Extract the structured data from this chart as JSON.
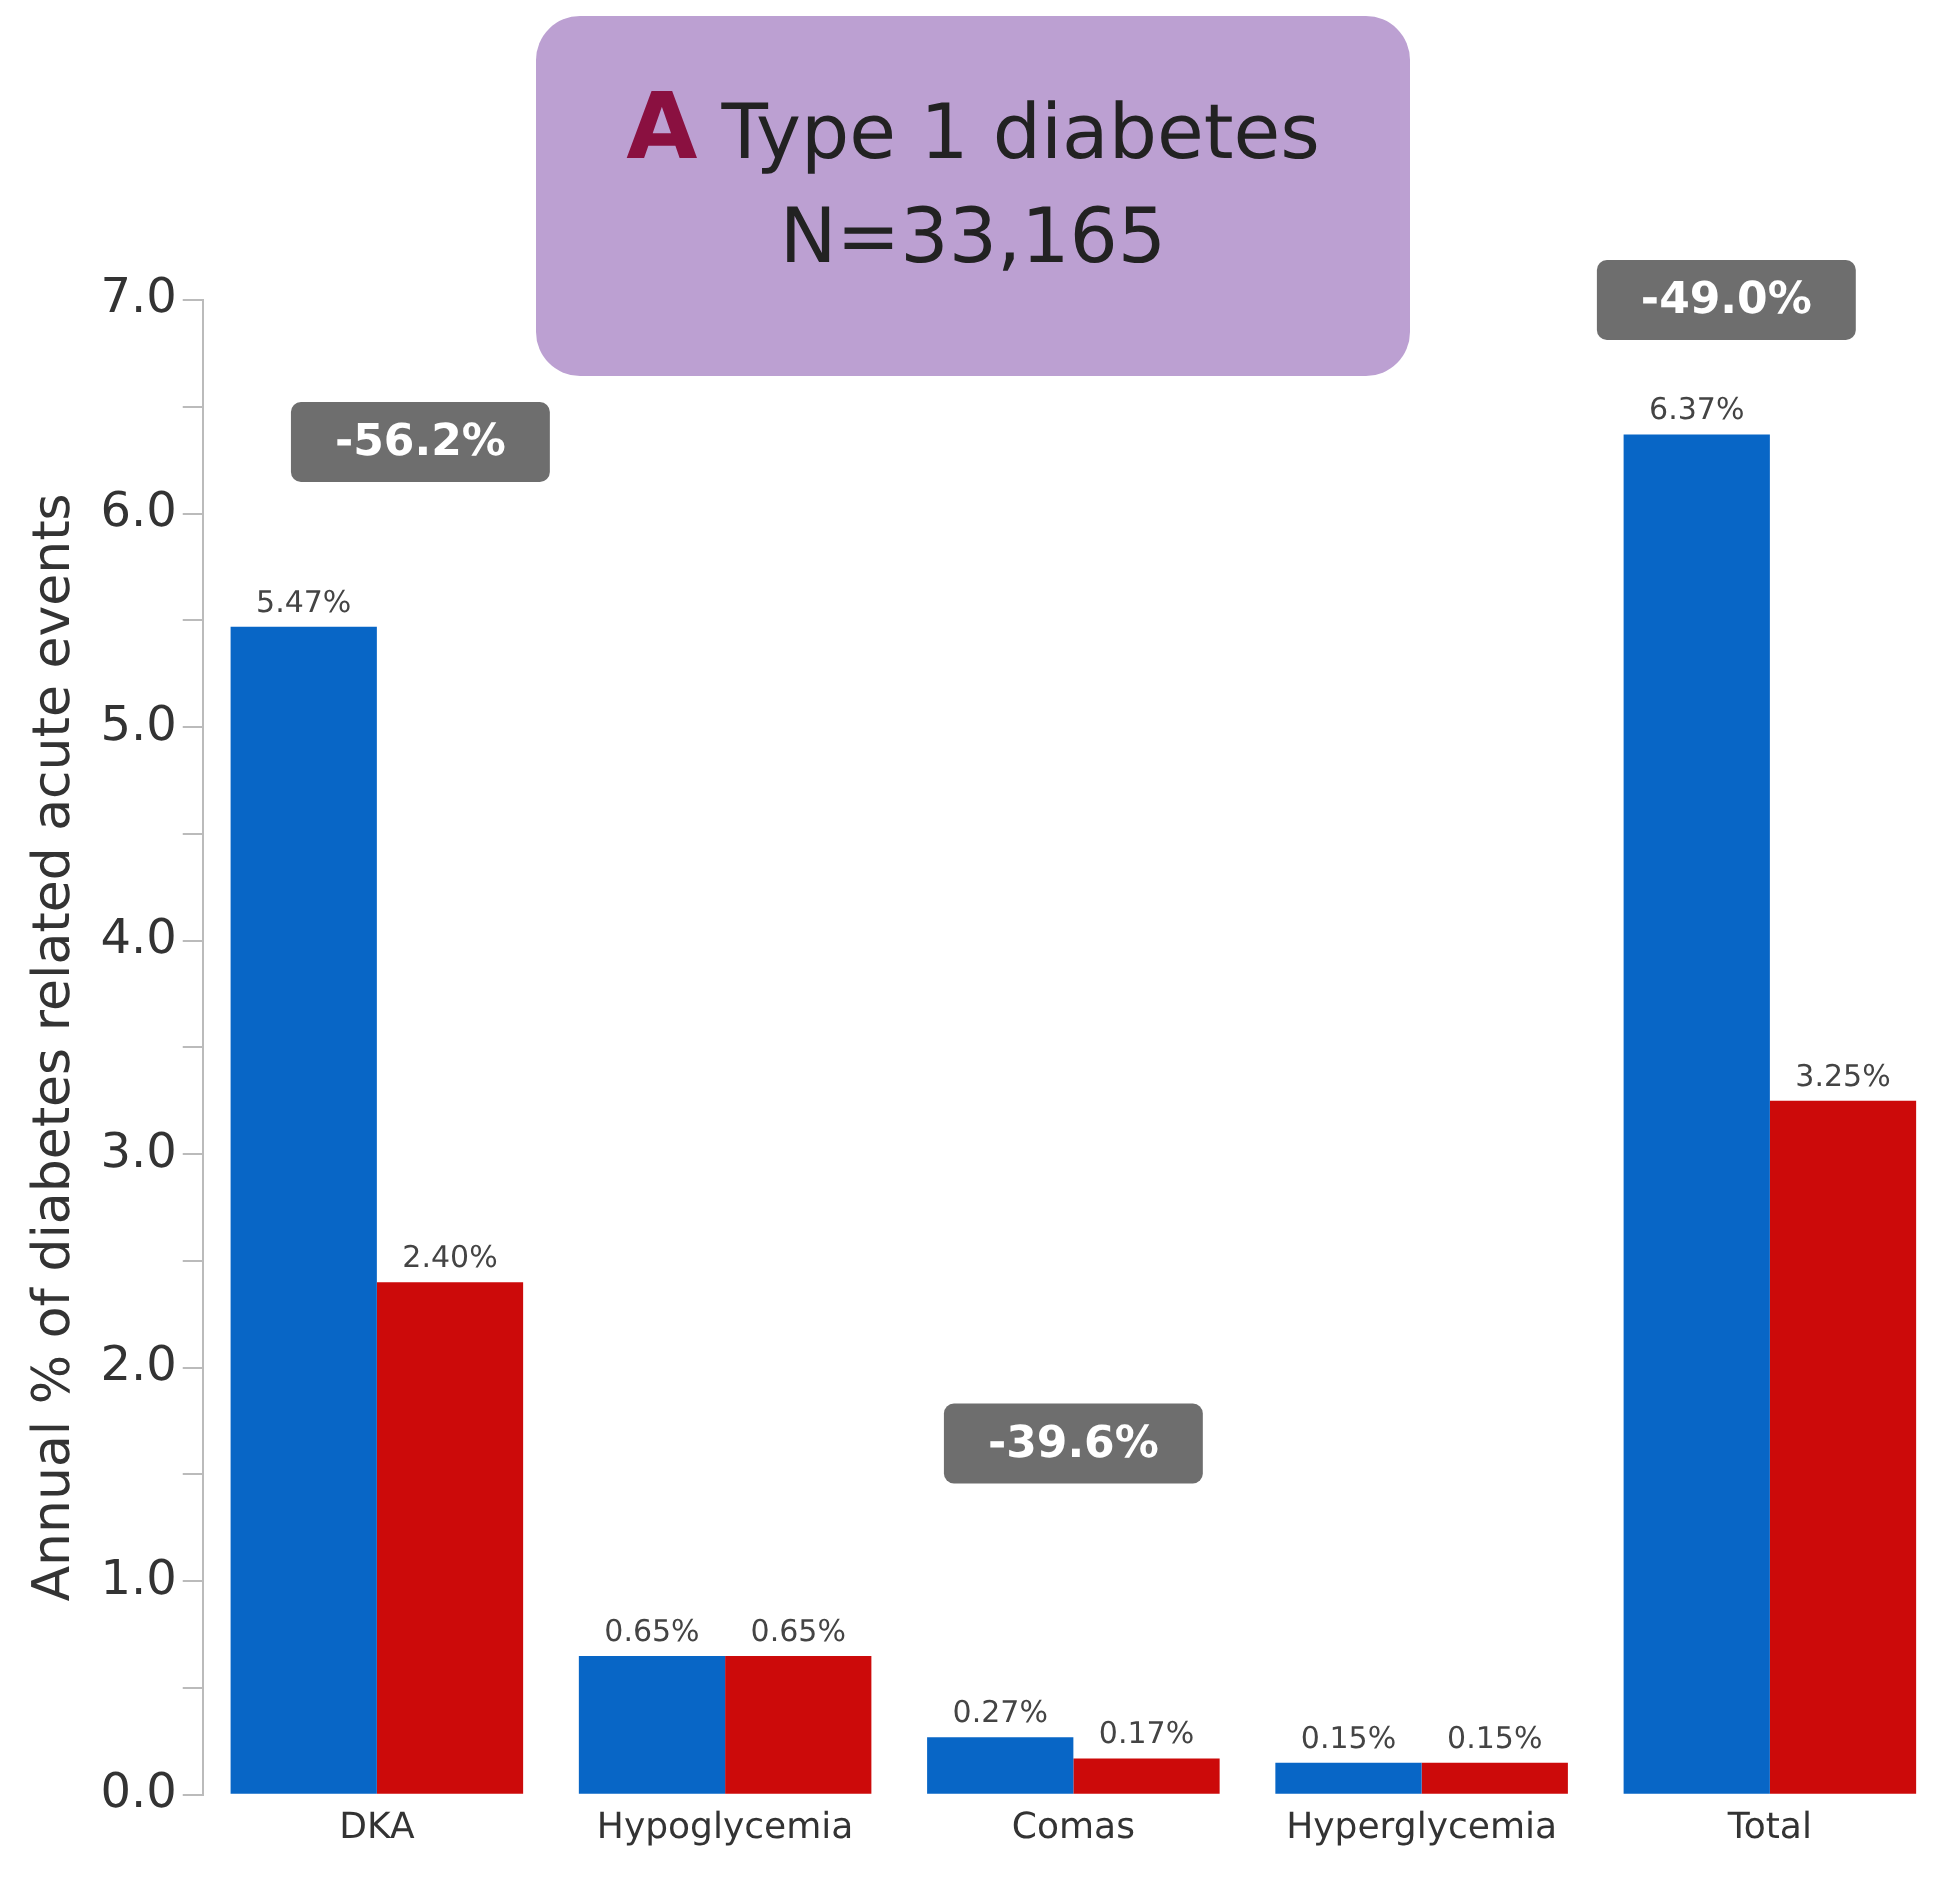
{
  "chart_data": {
    "type": "bar",
    "title": "A Type 1 diabetes",
    "subtitle": "N=33,165",
    "ylabel": "Annual % of diabetes related acute events",
    "categories": [
      "DKA",
      "Hypoglycemia",
      "Comas",
      "Hyperglycemia",
      "Total"
    ],
    "series": [
      {
        "color": "#0866c6",
        "values": [
          5.47,
          0.65,
          0.27,
          0.15,
          6.37
        ],
        "value_labels": [
          "5.47%",
          "0.65%",
          "0.27%",
          "0.15%",
          "6.37%"
        ]
      },
      {
        "color": "#cc0a0a",
        "values": [
          2.4,
          0.65,
          0.17,
          0.15,
          3.25
        ],
        "value_labels": [
          "2.40%",
          "0.65%",
          "0.17%",
          "0.15%",
          "3.25%"
        ]
      }
    ],
    "ylim": [
      0,
      7
    ],
    "yticks": [
      {
        "value": 0,
        "label": "0.0"
      },
      {
        "value": 0.5,
        "label": null
      },
      {
        "value": 1,
        "label": "1.0"
      },
      {
        "value": 1.5,
        "label": null
      },
      {
        "value": 2,
        "label": "2.0"
      },
      {
        "value": 2.5,
        "label": null
      },
      {
        "value": 3,
        "label": "3.0"
      },
      {
        "value": 3.5,
        "label": null
      },
      {
        "value": 4,
        "label": "4.0"
      },
      {
        "value": 4.5,
        "label": null
      },
      {
        "value": 5,
        "label": "5.0"
      },
      {
        "value": 5.5,
        "label": null
      },
      {
        "value": 6,
        "label": "6.0"
      },
      {
        "value": 6.5,
        "label": null
      },
      {
        "value": 7,
        "label": "7.0"
      }
    ],
    "annotations": [
      "-56.2%",
      "-39.6%",
      "-49.0%"
    ],
    "grid": false,
    "legend": false
  }
}
